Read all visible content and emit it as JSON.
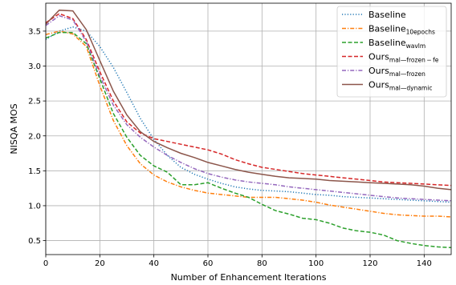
{
  "chart_data": {
    "type": "line",
    "xlabel": "Number of Enhancement Iterations",
    "ylabel": "NISQA MOS",
    "xlim": [
      0,
      150
    ],
    "ylim": [
      0.3,
      3.9
    ],
    "xticks": [
      0,
      20,
      40,
      60,
      80,
      100,
      120,
      140
    ],
    "yticks": [
      0.5,
      1.0,
      1.5,
      2.0,
      2.5,
      3.0,
      3.5
    ],
    "grid": true,
    "legend_position": "top-right",
    "series": [
      {
        "name": "Baseline",
        "name_sub": "",
        "color": "#1f77b4",
        "dash": "dotted",
        "x": [
          0,
          5,
          10,
          15,
          20,
          25,
          30,
          35,
          40,
          45,
          50,
          55,
          60,
          65,
          70,
          75,
          80,
          85,
          90,
          95,
          100,
          105,
          110,
          115,
          120,
          125,
          130,
          135,
          140,
          145,
          150
        ],
        "y": [
          3.38,
          3.5,
          3.56,
          3.5,
          3.28,
          2.98,
          2.62,
          2.25,
          1.95,
          1.72,
          1.55,
          1.45,
          1.38,
          1.32,
          1.27,
          1.24,
          1.22,
          1.21,
          1.2,
          1.18,
          1.16,
          1.15,
          1.13,
          1.12,
          1.11,
          1.1,
          1.09,
          1.08,
          1.07,
          1.06,
          1.05
        ]
      },
      {
        "name": "Baseline",
        "name_sub": "10epochs",
        "color": "#ff7f0e",
        "dash": "dashdot",
        "x": [
          0,
          5,
          10,
          15,
          20,
          25,
          30,
          35,
          40,
          45,
          50,
          55,
          60,
          65,
          70,
          75,
          80,
          85,
          90,
          95,
          100,
          105,
          110,
          115,
          120,
          125,
          130,
          135,
          140,
          145,
          150
        ],
        "y": [
          3.45,
          3.5,
          3.46,
          3.28,
          2.72,
          2.22,
          1.86,
          1.6,
          1.44,
          1.34,
          1.27,
          1.22,
          1.18,
          1.16,
          1.14,
          1.12,
          1.12,
          1.12,
          1.1,
          1.08,
          1.05,
          1.01,
          0.98,
          0.95,
          0.92,
          0.89,
          0.87,
          0.86,
          0.85,
          0.85,
          0.84
        ]
      },
      {
        "name": "Baseline",
        "name_sub": "wavlm",
        "color": "#2ca02c",
        "dash": "dashed",
        "x": [
          0,
          5,
          10,
          15,
          20,
          25,
          30,
          35,
          40,
          45,
          50,
          55,
          60,
          65,
          70,
          75,
          80,
          85,
          90,
          95,
          100,
          105,
          110,
          115,
          120,
          125,
          130,
          135,
          140,
          145,
          150
        ],
        "y": [
          3.4,
          3.48,
          3.48,
          3.32,
          2.82,
          2.32,
          1.98,
          1.72,
          1.57,
          1.48,
          1.3,
          1.3,
          1.33,
          1.25,
          1.18,
          1.12,
          1.02,
          0.93,
          0.88,
          0.82,
          0.8,
          0.75,
          0.68,
          0.64,
          0.62,
          0.58,
          0.5,
          0.46,
          0.43,
          0.41,
          0.4
        ]
      },
      {
        "name": "Ours",
        "name_sub": "mal—frozen − fe",
        "color": "#d62728",
        "dash": "dashed",
        "x": [
          0,
          5,
          10,
          15,
          20,
          25,
          30,
          35,
          40,
          45,
          50,
          55,
          60,
          65,
          70,
          75,
          80,
          85,
          90,
          95,
          100,
          105,
          110,
          115,
          120,
          125,
          130,
          135,
          140,
          145,
          150
        ],
        "y": [
          3.62,
          3.75,
          3.68,
          3.38,
          2.92,
          2.5,
          2.2,
          2.04,
          1.96,
          1.92,
          1.88,
          1.84,
          1.8,
          1.74,
          1.66,
          1.6,
          1.55,
          1.52,
          1.49,
          1.46,
          1.44,
          1.42,
          1.4,
          1.38,
          1.36,
          1.34,
          1.33,
          1.32,
          1.31,
          1.3,
          1.29
        ]
      },
      {
        "name": "Ours",
        "name_sub": "mal—frozen",
        "color": "#9467bd",
        "dash": "dashdot",
        "x": [
          0,
          5,
          10,
          15,
          20,
          25,
          30,
          35,
          40,
          45,
          50,
          55,
          60,
          65,
          70,
          75,
          80,
          85,
          90,
          95,
          100,
          105,
          110,
          115,
          120,
          125,
          130,
          135,
          140,
          145,
          150
        ],
        "y": [
          3.58,
          3.72,
          3.66,
          3.35,
          2.86,
          2.44,
          2.16,
          1.98,
          1.84,
          1.72,
          1.62,
          1.53,
          1.46,
          1.41,
          1.37,
          1.34,
          1.32,
          1.3,
          1.27,
          1.25,
          1.23,
          1.21,
          1.19,
          1.17,
          1.15,
          1.13,
          1.11,
          1.1,
          1.09,
          1.08,
          1.07
        ]
      },
      {
        "name": "Ours",
        "name_sub": "mal—dynamic",
        "color": "#8c564b",
        "dash": "solid",
        "x": [
          0,
          5,
          10,
          15,
          20,
          25,
          30,
          35,
          40,
          45,
          50,
          55,
          60,
          65,
          70,
          75,
          80,
          85,
          90,
          95,
          100,
          105,
          110,
          115,
          120,
          125,
          130,
          135,
          140,
          145,
          150
        ],
        "y": [
          3.6,
          3.8,
          3.79,
          3.52,
          3.08,
          2.64,
          2.3,
          2.06,
          1.92,
          1.83,
          1.75,
          1.69,
          1.62,
          1.57,
          1.52,
          1.48,
          1.45,
          1.42,
          1.4,
          1.39,
          1.38,
          1.36,
          1.35,
          1.34,
          1.33,
          1.32,
          1.31,
          1.3,
          1.28,
          1.25,
          1.23
        ]
      }
    ]
  }
}
